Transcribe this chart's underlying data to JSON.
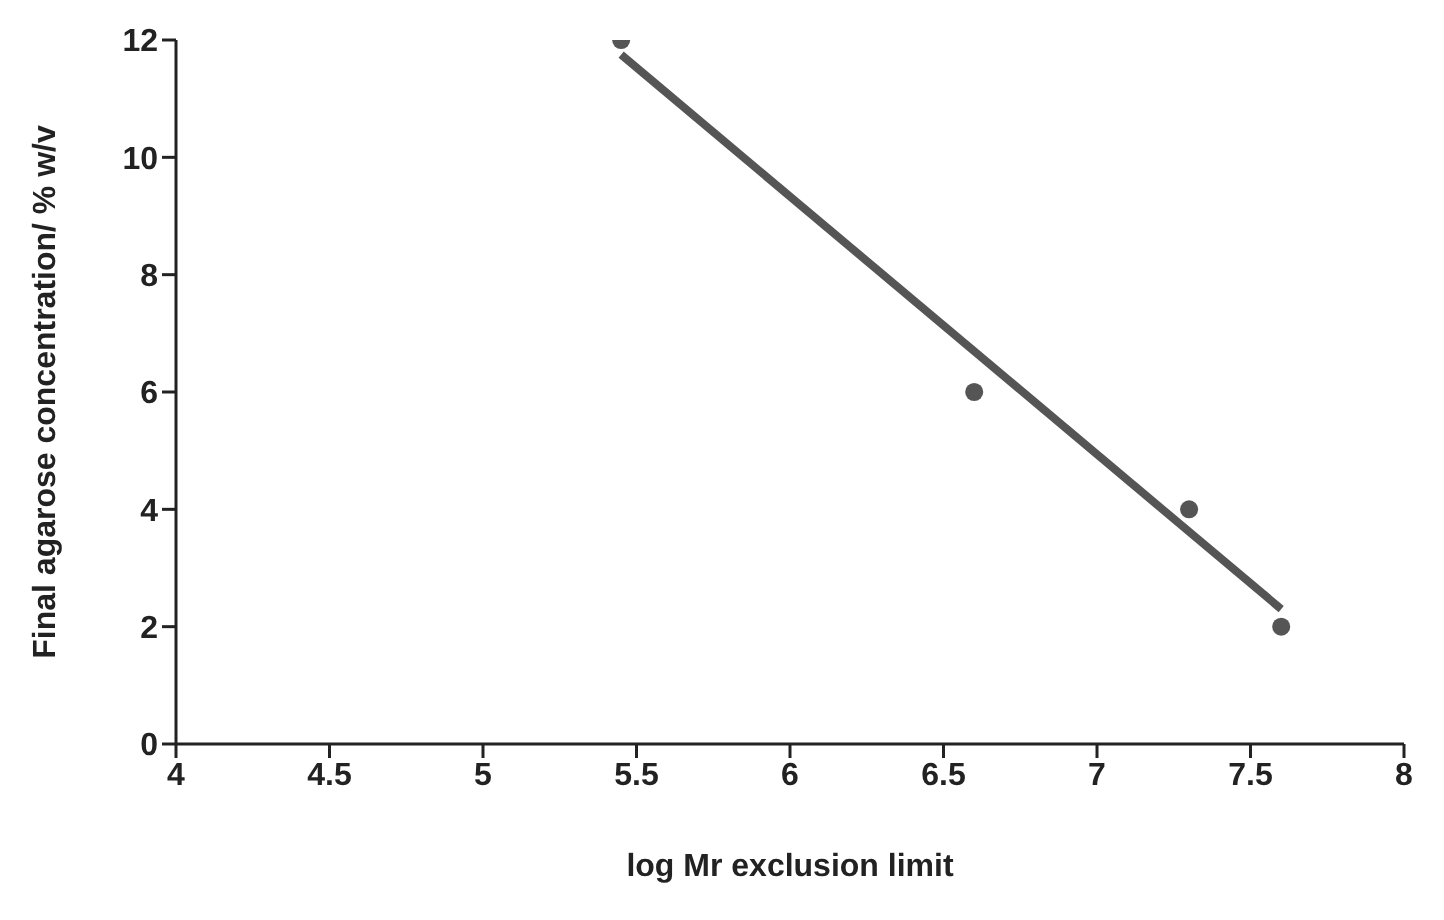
{
  "chart_data": {
    "type": "scatter",
    "xlabel": "log Mr exclusion limit",
    "ylabel": "Final agarose concentration/ % w/v",
    "xlim": [
      4,
      8
    ],
    "xticks": [
      4,
      4.5,
      5,
      5.5,
      6,
      6.5,
      7,
      7.5,
      8
    ],
    "ylim": [
      0,
      12
    ],
    "yticks": [
      0,
      2,
      4,
      6,
      8,
      10,
      12
    ],
    "grid": false,
    "legend": false,
    "marker": "circle",
    "series": [
      {
        "color": "#555555",
        "x": [
          5.45,
          6.6,
          7.3,
          7.6
        ],
        "values": [
          12,
          6,
          4,
          2
        ]
      },
      {
        "type": "line",
        "color": "#555555",
        "marker": "none",
        "x": [
          5.45,
          7.6
        ],
        "values": [
          11.75,
          2.3
        ]
      }
    ]
  }
}
